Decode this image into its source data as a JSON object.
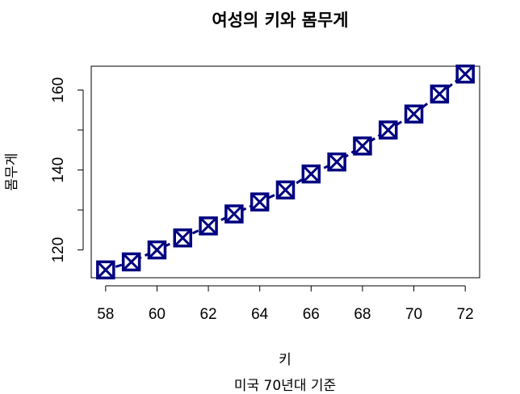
{
  "chart_data": {
    "type": "line",
    "title": "여성의 키와 몸무게",
    "subtitle": "미국 70년대 기준",
    "xlabel": "키",
    "ylabel": "몸무게",
    "x": [
      58,
      59,
      60,
      61,
      62,
      63,
      64,
      65,
      66,
      67,
      68,
      69,
      70,
      71,
      72
    ],
    "series": [
      {
        "values": [
          115,
          117,
          120,
          123,
          126,
          129,
          132,
          135,
          139,
          142,
          146,
          150,
          154,
          159,
          164
        ]
      }
    ],
    "xlim": [
      57.44,
      72.56
    ],
    "ylim": [
      113.04,
      165.96
    ],
    "xticks": [
      58,
      60,
      62,
      64,
      66,
      68,
      70,
      72
    ],
    "yticks": [
      120,
      130,
      140,
      150,
      160
    ],
    "yticklabels": [
      "120",
      "",
      "140",
      "",
      "160"
    ],
    "line_style": "dashed",
    "marker": "square-with-x",
    "color": "#000080",
    "grid": false
  }
}
